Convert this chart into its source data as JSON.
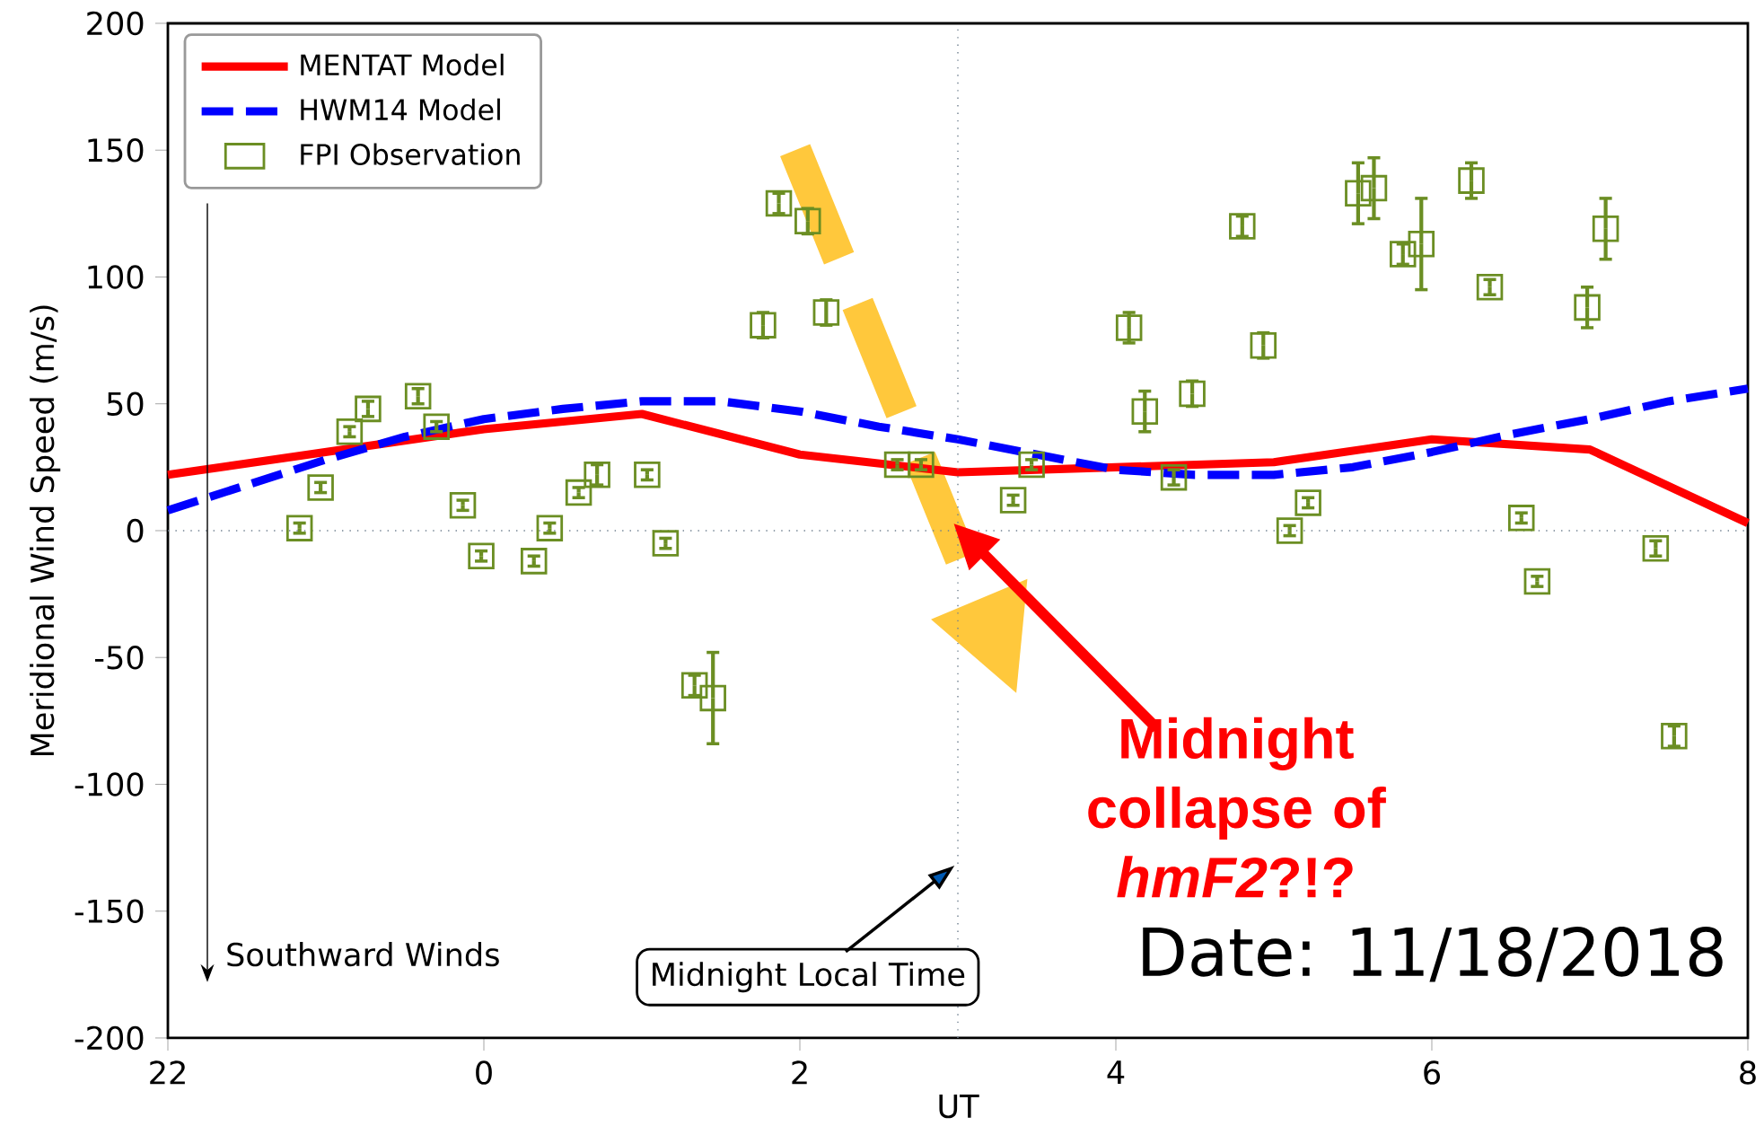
{
  "chart_data": {
    "type": "line",
    "xlabel": "UT",
    "ylabel": "Meridional Wind Speed (m/s)",
    "xlim": [
      "2018-11-17T22:00",
      "2018-11-18T08:00"
    ],
    "xticks": [
      {
        "value": "2018-11-17T22:00",
        "label": "22"
      },
      {
        "value": "2018-11-18T00:00",
        "label": "0"
      },
      {
        "value": "2018-11-18T02:00",
        "label": "2"
      },
      {
        "value": "2018-11-18T04:00",
        "label": "4"
      },
      {
        "value": "2018-11-18T06:00",
        "label": "6"
      },
      {
        "value": "2018-11-18T08:00",
        "label": "8"
      }
    ],
    "ylim": [
      -200,
      200
    ],
    "yticks": [
      -200,
      -150,
      -100,
      -50,
      0,
      50,
      100,
      150,
      200
    ],
    "legend": "top left",
    "series": [
      {
        "name": "MENTAT Model",
        "color": "#ff0000",
        "line_style": "solid",
        "x": [
          "2018-11-17T22:00",
          "2018-11-18T00:00",
          "2018-11-18T01:00",
          "2018-11-18T02:00",
          "2018-11-18T03:00",
          "2018-11-18T04:00",
          "2018-11-18T05:00",
          "2018-11-18T06:00",
          "2018-11-18T07:00",
          "2018-11-18T08:00"
        ],
        "values": [
          22,
          40,
          46,
          30,
          23,
          25,
          27,
          36,
          32,
          3
        ]
      },
      {
        "name": "HWM14 Model",
        "color": "#0000ff",
        "line_style": "dashed",
        "x": [
          "2018-11-17T22:00",
          "2018-11-17T22:30",
          "2018-11-17T23:00",
          "2018-11-17T23:30",
          "2018-11-18T00:00",
          "2018-11-18T00:30",
          "2018-11-18T01:00",
          "2018-11-18T01:30",
          "2018-11-18T02:00",
          "2018-11-18T02:30",
          "2018-11-18T03:00",
          "2018-11-18T03:30",
          "2018-11-18T04:00",
          "2018-11-18T04:30",
          "2018-11-18T05:00",
          "2018-11-18T05:30",
          "2018-11-18T06:00",
          "2018-11-18T06:30",
          "2018-11-18T07:00",
          "2018-11-18T07:30",
          "2018-11-18T08:00"
        ],
        "values": [
          8,
          18,
          28,
          37,
          44,
          48,
          51,
          51,
          47,
          41,
          36,
          30,
          24,
          22,
          22,
          25,
          31,
          38,
          44,
          51,
          56
        ]
      },
      {
        "name": "FPI Observation",
        "type": "scatter",
        "color": "#6b8e23",
        "marker": "square",
        "x": [
          "2018-11-17T22:50",
          "2018-11-17T22:58",
          "2018-11-17T23:09",
          "2018-11-17T23:16",
          "2018-11-17T23:35",
          "2018-11-17T23:42",
          "2018-11-17T23:52",
          "2018-11-17T23:59",
          "2018-11-18T00:19",
          "2018-11-18T00:25",
          "2018-11-18T00:36",
          "2018-11-18T00:43",
          "2018-11-18T01:02",
          "2018-11-18T01:09",
          "2018-11-18T01:20",
          "2018-11-18T01:27",
          "2018-11-18T01:46",
          "2018-11-18T01:52",
          "2018-11-18T02:03",
          "2018-11-18T02:10",
          "2018-11-18T02:37",
          "2018-11-18T02:46",
          "2018-11-18T03:21",
          "2018-11-18T03:28",
          "2018-11-18T04:05",
          "2018-11-18T04:11",
          "2018-11-18T04:22",
          "2018-11-18T04:29",
          "2018-11-18T04:48",
          "2018-11-18T04:56",
          "2018-11-18T05:06",
          "2018-11-18T05:13",
          "2018-11-18T05:32",
          "2018-11-18T05:38",
          "2018-11-18T05:49",
          "2018-11-18T05:56",
          "2018-11-18T06:15",
          "2018-11-18T06:22",
          "2018-11-18T06:34",
          "2018-11-18T06:40",
          "2018-11-18T06:59",
          "2018-11-18T07:06",
          "2018-11-18T07:25",
          "2018-11-18T07:32"
        ],
        "values": [
          1,
          17,
          39,
          48,
          53,
          41,
          10,
          -10,
          -12,
          1,
          15,
          22,
          22,
          -5,
          -61,
          -66,
          81,
          129,
          122,
          86,
          26,
          26,
          12,
          26,
          80,
          47,
          21,
          54,
          120,
          73,
          0,
          11,
          133,
          135,
          109,
          113,
          138,
          96,
          5,
          -20,
          88,
          119,
          -7,
          -81
        ],
        "errors": [
          2,
          2,
          2,
          3,
          3,
          2,
          2,
          2,
          2,
          2,
          2,
          4,
          2,
          2,
          4,
          18,
          5,
          4,
          5,
          5,
          2,
          2,
          2,
          2,
          6,
          8,
          3,
          5,
          4,
          5,
          2,
          2,
          12,
          12,
          4,
          18,
          7,
          3,
          2,
          2,
          8,
          12,
          3,
          4
        ]
      }
    ],
    "ref_lines": [
      {
        "axis": "y",
        "value": 0,
        "color": "#708090",
        "line_style": "dotted"
      },
      {
        "axis": "x",
        "value": "2018-11-18T03:00",
        "color": "#708090",
        "line_style": "dotted"
      }
    ],
    "annotations": [
      "Southward Winds",
      "Midnight Local Time",
      "Midnight collapse of *hmF2*?!?",
      "Date: 11/18/2018"
    ]
  }
}
